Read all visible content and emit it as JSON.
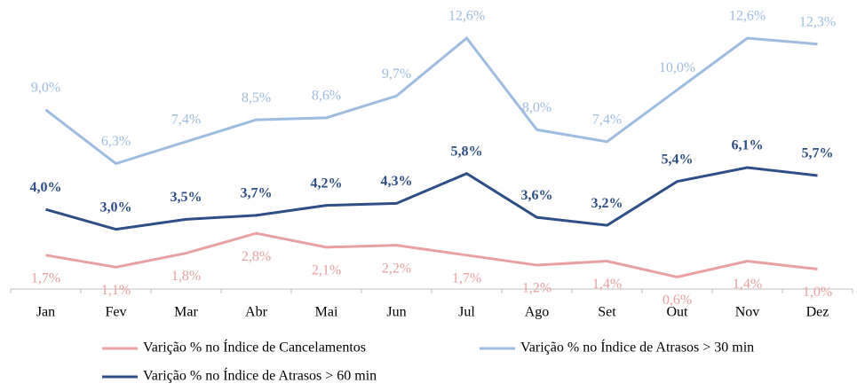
{
  "chart_data": {
    "type": "line",
    "categories": [
      "Jan",
      "Fev",
      "Mar",
      "Abr",
      "Mai",
      "Jun",
      "Jul",
      "Ago",
      "Set",
      "Out",
      "Nov",
      "Dez"
    ],
    "series": [
      {
        "name": "Varição % no Índice de Cancelamentos",
        "color": "#e8a0a0",
        "values": [
          1.7,
          1.1,
          1.8,
          2.8,
          2.1,
          2.2,
          1.7,
          1.2,
          1.4,
          0.6,
          1.4,
          1.0
        ],
        "value_labels": [
          "1,7%",
          "1,1%",
          "1,8%",
          "2,8%",
          "2,1%",
          "2,2%",
          "1,7%",
          "1,2%",
          "1,4%",
          "0,6%",
          "1,4%",
          "1,0%"
        ]
      },
      {
        "name": "Varição % no Índice de Atrasos > 30 min",
        "color": "#9dbce0",
        "values": [
          9.0,
          6.3,
          7.4,
          8.5,
          8.6,
          9.7,
          12.6,
          8.0,
          7.4,
          10.0,
          12.6,
          12.3
        ],
        "value_labels": [
          "9,0%",
          "6,3%",
          "7,4%",
          "8,5%",
          "8,6%",
          "9,7%",
          "12,6%",
          "8,0%",
          "7,4%",
          "10,0%",
          "12,6%",
          "12,3%"
        ]
      },
      {
        "name": "Varição % no Índice de Atrasos > 60 min",
        "color": "#2e4e86",
        "values": [
          4.0,
          3.0,
          3.5,
          3.7,
          4.2,
          4.3,
          5.8,
          3.6,
          3.2,
          5.4,
          6.1,
          5.7
        ],
        "value_labels": [
          "4,0%",
          "3,0%",
          "3,5%",
          "3,7%",
          "4,2%",
          "4,3%",
          "5,8%",
          "3,6%",
          "3,2%",
          "5,4%",
          "6,1%",
          "5,7%"
        ]
      }
    ]
  }
}
